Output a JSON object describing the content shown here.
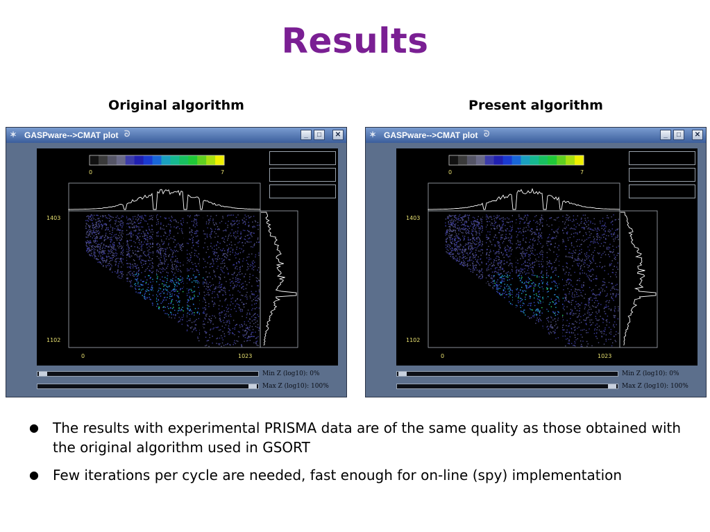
{
  "slide": {
    "title": "Results"
  },
  "captions": {
    "left": "Original algorithm",
    "right": "Present algorithm"
  },
  "windows": [
    {
      "title": "GASPware-->CMAT plot",
      "colorbar": {
        "min_label": "0",
        "max_label": "7"
      },
      "axes": {
        "x_min": "0",
        "x_max": "1023",
        "y_top": "1403",
        "y_bottom": "1102"
      },
      "sliders": {
        "min_label": "Min Z (log10): 0%",
        "max_label": "Max Z (log10): 100%",
        "min_value": 0,
        "max_value": 100
      }
    },
    {
      "title": "GASPware-->CMAT plot",
      "colorbar": {
        "min_label": "0",
        "max_label": "7"
      },
      "axes": {
        "x_min": "0",
        "x_max": "1023",
        "y_top": "1403",
        "y_bottom": "1102"
      },
      "sliders": {
        "min_label": "Min Z (log10): 0%",
        "max_label": "Max Z (log10): 100%",
        "min_value": 0,
        "max_value": 100
      }
    }
  ],
  "window_buttons": {
    "minimize": "_",
    "maximize": "□",
    "close": "✕"
  },
  "icons": {
    "app": "star-icon",
    "swirl": "swirl-icon"
  },
  "colors": {
    "title": "#7a1f93",
    "axis_labels": "#e8e070",
    "window_bg": "#5c6f8c"
  },
  "bullets": [
    "The results with experimental PRISMA data are of the same quality as those obtained with the original algorithm used in GSORT",
    "Few iterations per cycle are needed, fast enough for on-line (spy) implementation"
  ]
}
